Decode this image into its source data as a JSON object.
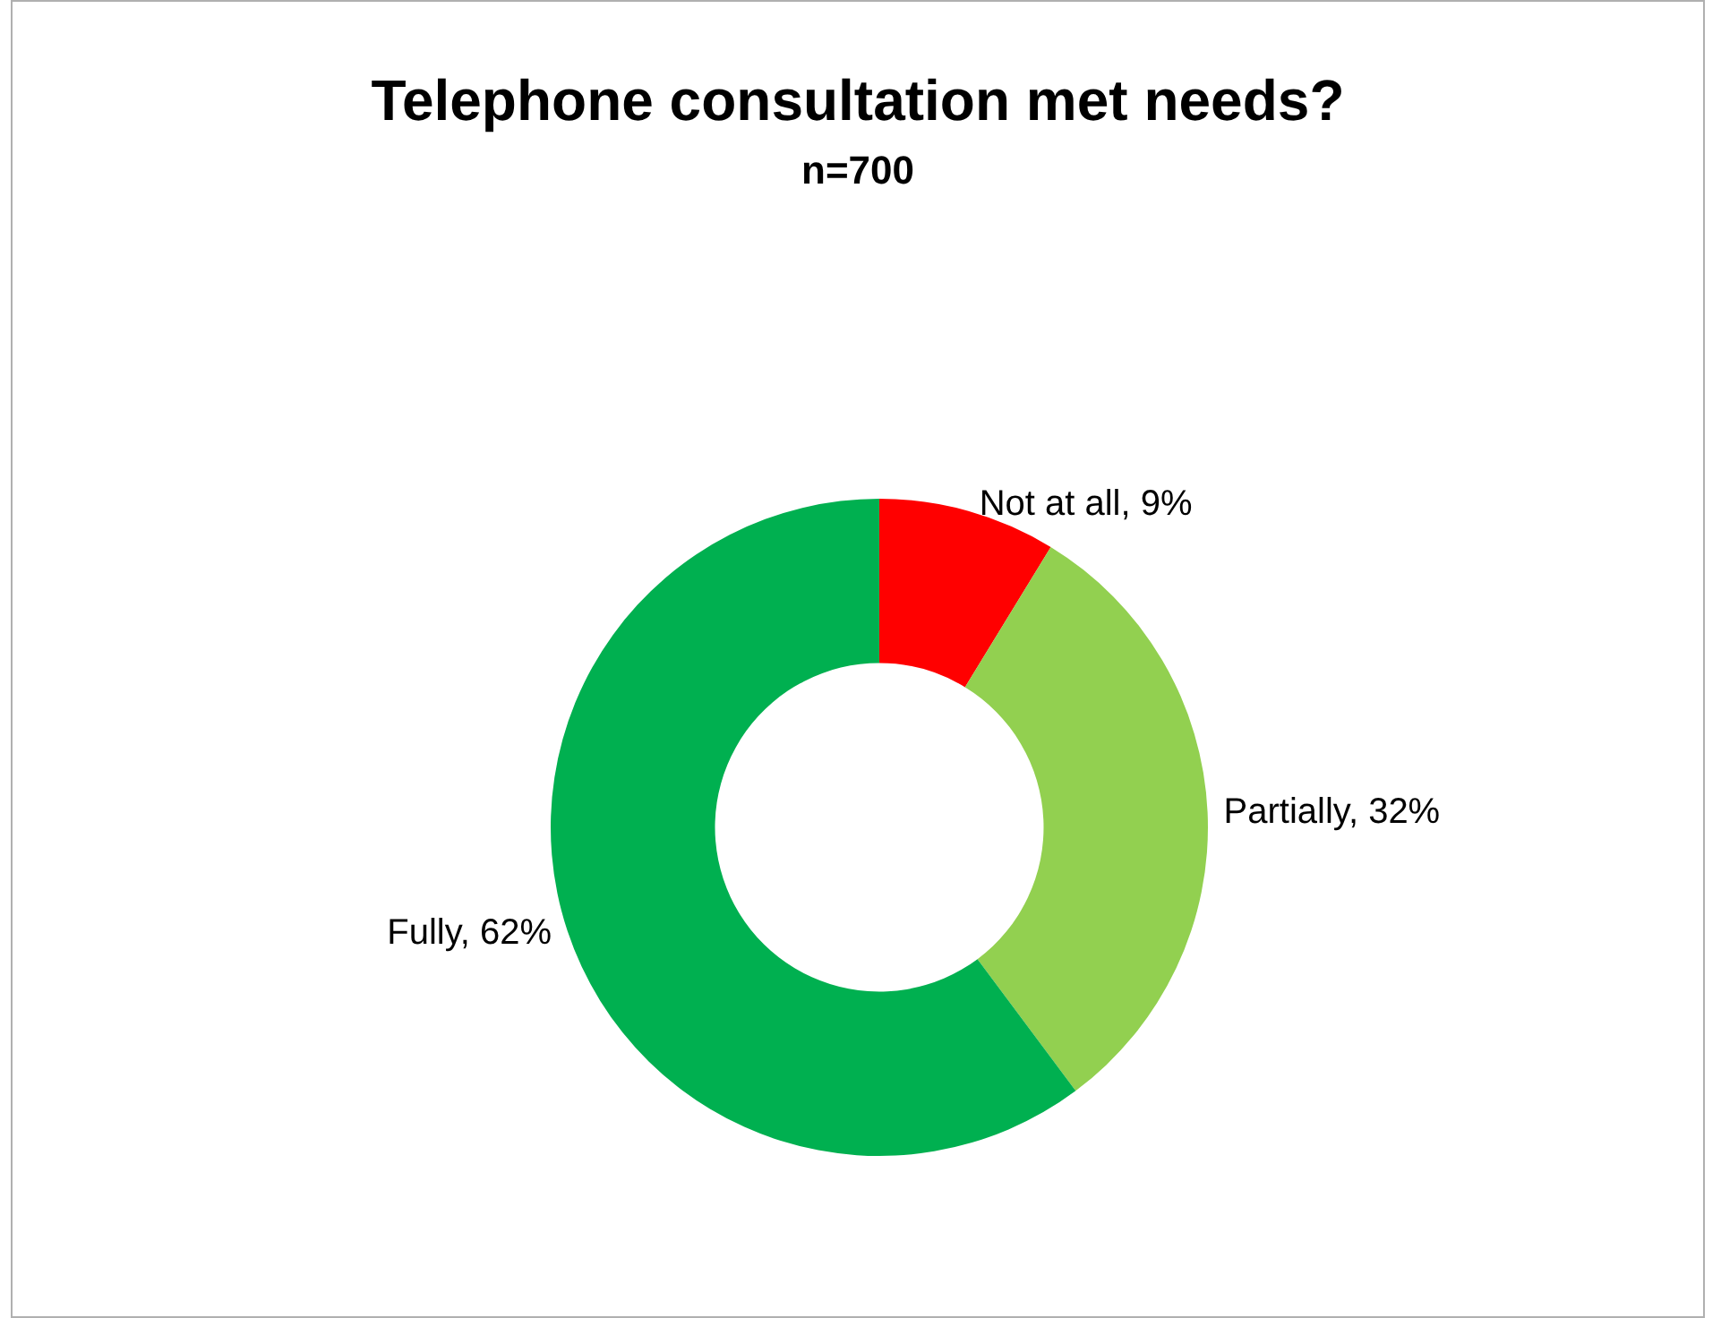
{
  "chart_data": {
    "type": "donut",
    "title": "Telephone consultation met needs?",
    "subtitle": "n=700",
    "categories": [
      "Not at all",
      "Partially",
      "Fully"
    ],
    "values": [
      9,
      32,
      62
    ],
    "colors": [
      "#ff0000",
      "#92d050",
      "#00b050"
    ],
    "value_labels": [
      "9%",
      "32%",
      "62%"
    ],
    "legend": false
  }
}
